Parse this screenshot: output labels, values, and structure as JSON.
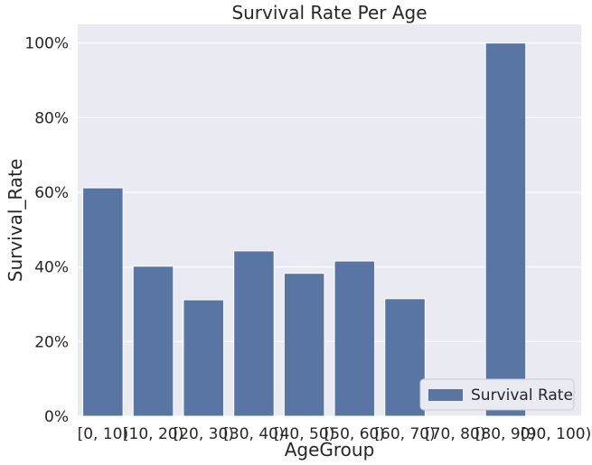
{
  "chart_data": {
    "type": "bar",
    "title": "Survival Rate Per Age",
    "xlabel": "AgeGroup",
    "ylabel": "Survival_Rate",
    "categories": [
      "[0, 10)",
      "[10, 20)",
      "[20, 30)",
      "[30, 40)",
      "[40, 50)",
      "[50, 60)",
      "[60, 70)",
      "[70, 80)",
      "[80, 90)",
      "[90, 100)"
    ],
    "series": [
      {
        "name": "Survival Rate",
        "values": [
          0.612,
          0.402,
          0.312,
          0.443,
          0.383,
          0.416,
          0.315,
          0,
          1.0,
          0
        ],
        "color": "#5975a4"
      }
    ],
    "ylim": [
      0,
      1.05
    ],
    "yticks": [
      0,
      0.2,
      0.4,
      0.6,
      0.8,
      1.0
    ],
    "ytick_labels": [
      "0%",
      "20%",
      "40%",
      "60%",
      "80%",
      "100%"
    ],
    "grid": "y",
    "legend_position": "lower right",
    "colors": {
      "plot_background": "#eaeaf2",
      "grid": "#ffffff",
      "bar": "#5975a4"
    }
  }
}
